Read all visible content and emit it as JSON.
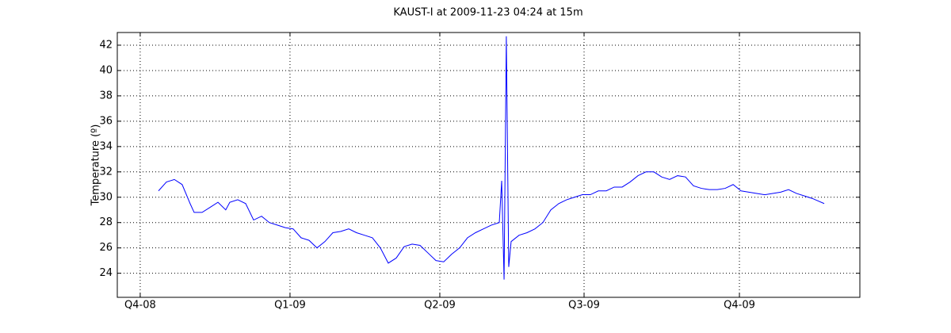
{
  "chart_data": {
    "type": "line",
    "title": "KAUST-I at 2009-11-23 04:24 at 15m",
    "y_label": "Temperature (º)",
    "color": "#0000ff",
    "grid": true,
    "x": [
      0.122,
      0.175,
      0.228,
      0.28,
      0.333,
      0.36,
      0.413,
      0.466,
      0.519,
      0.571,
      0.598,
      0.651,
      0.704,
      0.757,
      0.81,
      0.862,
      0.915,
      0.968,
      1.021,
      1.074,
      1.127,
      1.18,
      1.233,
      1.286,
      1.339,
      1.392,
      1.444,
      1.497,
      1.55,
      1.603,
      1.656,
      1.709,
      1.762,
      1.815,
      1.868,
      1.921,
      1.974,
      2.026,
      2.079,
      2.132,
      2.185,
      2.238,
      2.291,
      2.344,
      2.397,
      2.413,
      2.429,
      2.444,
      2.46,
      2.476,
      2.529,
      2.582,
      2.635,
      2.688,
      2.741,
      2.794,
      2.847,
      2.899,
      2.952,
      3.005,
      3.058,
      3.111,
      3.164,
      3.217,
      3.27,
      3.323,
      3.376,
      3.429,
      3.481,
      3.534,
      3.587,
      3.64,
      3.693,
      3.746,
      3.799,
      3.852,
      3.905,
      3.958,
      4.011,
      4.063,
      4.116,
      4.169,
      4.222,
      4.275,
      4.328,
      4.381,
      4.434,
      4.487,
      4.566
    ],
    "values": [
      30.5,
      31.2,
      31.4,
      31.0,
      29.5,
      28.8,
      28.8,
      29.2,
      29.6,
      29.0,
      29.6,
      29.8,
      29.5,
      28.2,
      28.5,
      28.0,
      27.8,
      27.6,
      27.5,
      26.8,
      26.6,
      26.0,
      26.5,
      27.2,
      27.3,
      27.5,
      27.2,
      27.0,
      26.8,
      26.0,
      24.8,
      25.2,
      26.1,
      26.3,
      26.2,
      25.6,
      25.0,
      24.9,
      25.5,
      26.0,
      26.8,
      27.2,
      27.5,
      27.8,
      28.0,
      31.3,
      23.5,
      42.7,
      24.5,
      26.5,
      27.0,
      27.2,
      27.5,
      28.0,
      29.0,
      29.5,
      29.8,
      30.0,
      30.2,
      30.2,
      30.5,
      30.5,
      30.8,
      30.8,
      31.2,
      31.7,
      32.0,
      32.0,
      31.6,
      31.4,
      31.7,
      31.6,
      30.9,
      30.7,
      30.6,
      30.6,
      30.7,
      31.0,
      30.5,
      30.4,
      30.3,
      30.2,
      30.3,
      30.4,
      30.6,
      30.3,
      30.1,
      29.9,
      29.5
    ],
    "xlim": [
      -0.153,
      4.804
    ],
    "xticks": [
      {
        "value": 0,
        "label": "Q4-08"
      },
      {
        "value": 1,
        "label": "Q1-09"
      },
      {
        "value": 2,
        "label": "Q2-09"
      },
      {
        "value": 2.963,
        "label": "Q3-09"
      },
      {
        "value": 4,
        "label": "Q4-09"
      }
    ],
    "ylim": [
      22.1,
      43
    ],
    "yticks": [
      24,
      26,
      28,
      30,
      32,
      34,
      36,
      38,
      40,
      42
    ]
  }
}
